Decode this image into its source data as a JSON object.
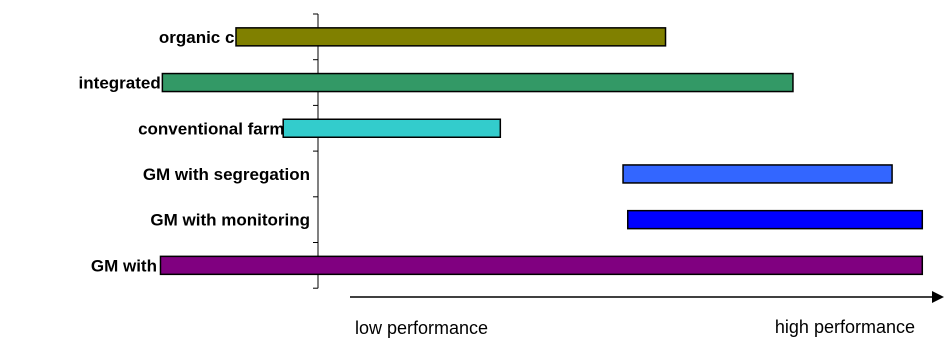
{
  "chart_data": {
    "type": "bar",
    "orientation": "horizontal-range",
    "categories": [
      "organic cultivation",
      "integrated pest management",
      "conventional farming",
      "GM with segregation",
      "GM with monitoring",
      "GM with voluntary controls"
    ],
    "ranges": [
      {
        "start": 0.25,
        "end": 0.705,
        "color": "#808000"
      },
      {
        "start": 0.172,
        "end": 0.84,
        "color": "#339966"
      },
      {
        "start": 0.3,
        "end": 0.53,
        "color": "#33cccc"
      },
      {
        "start": 0.66,
        "end": 0.945,
        "color": "#3366ff"
      },
      {
        "start": 0.665,
        "end": 0.977,
        "color": "#0000ff"
      },
      {
        "start": 0.17,
        "end": 0.977,
        "color": "#800080"
      }
    ],
    "xlim": [
      0,
      1
    ],
    "x_axis_left_label": "low performance",
    "x_axis_right_label": "high performance",
    "grid": false,
    "legend": "none"
  }
}
